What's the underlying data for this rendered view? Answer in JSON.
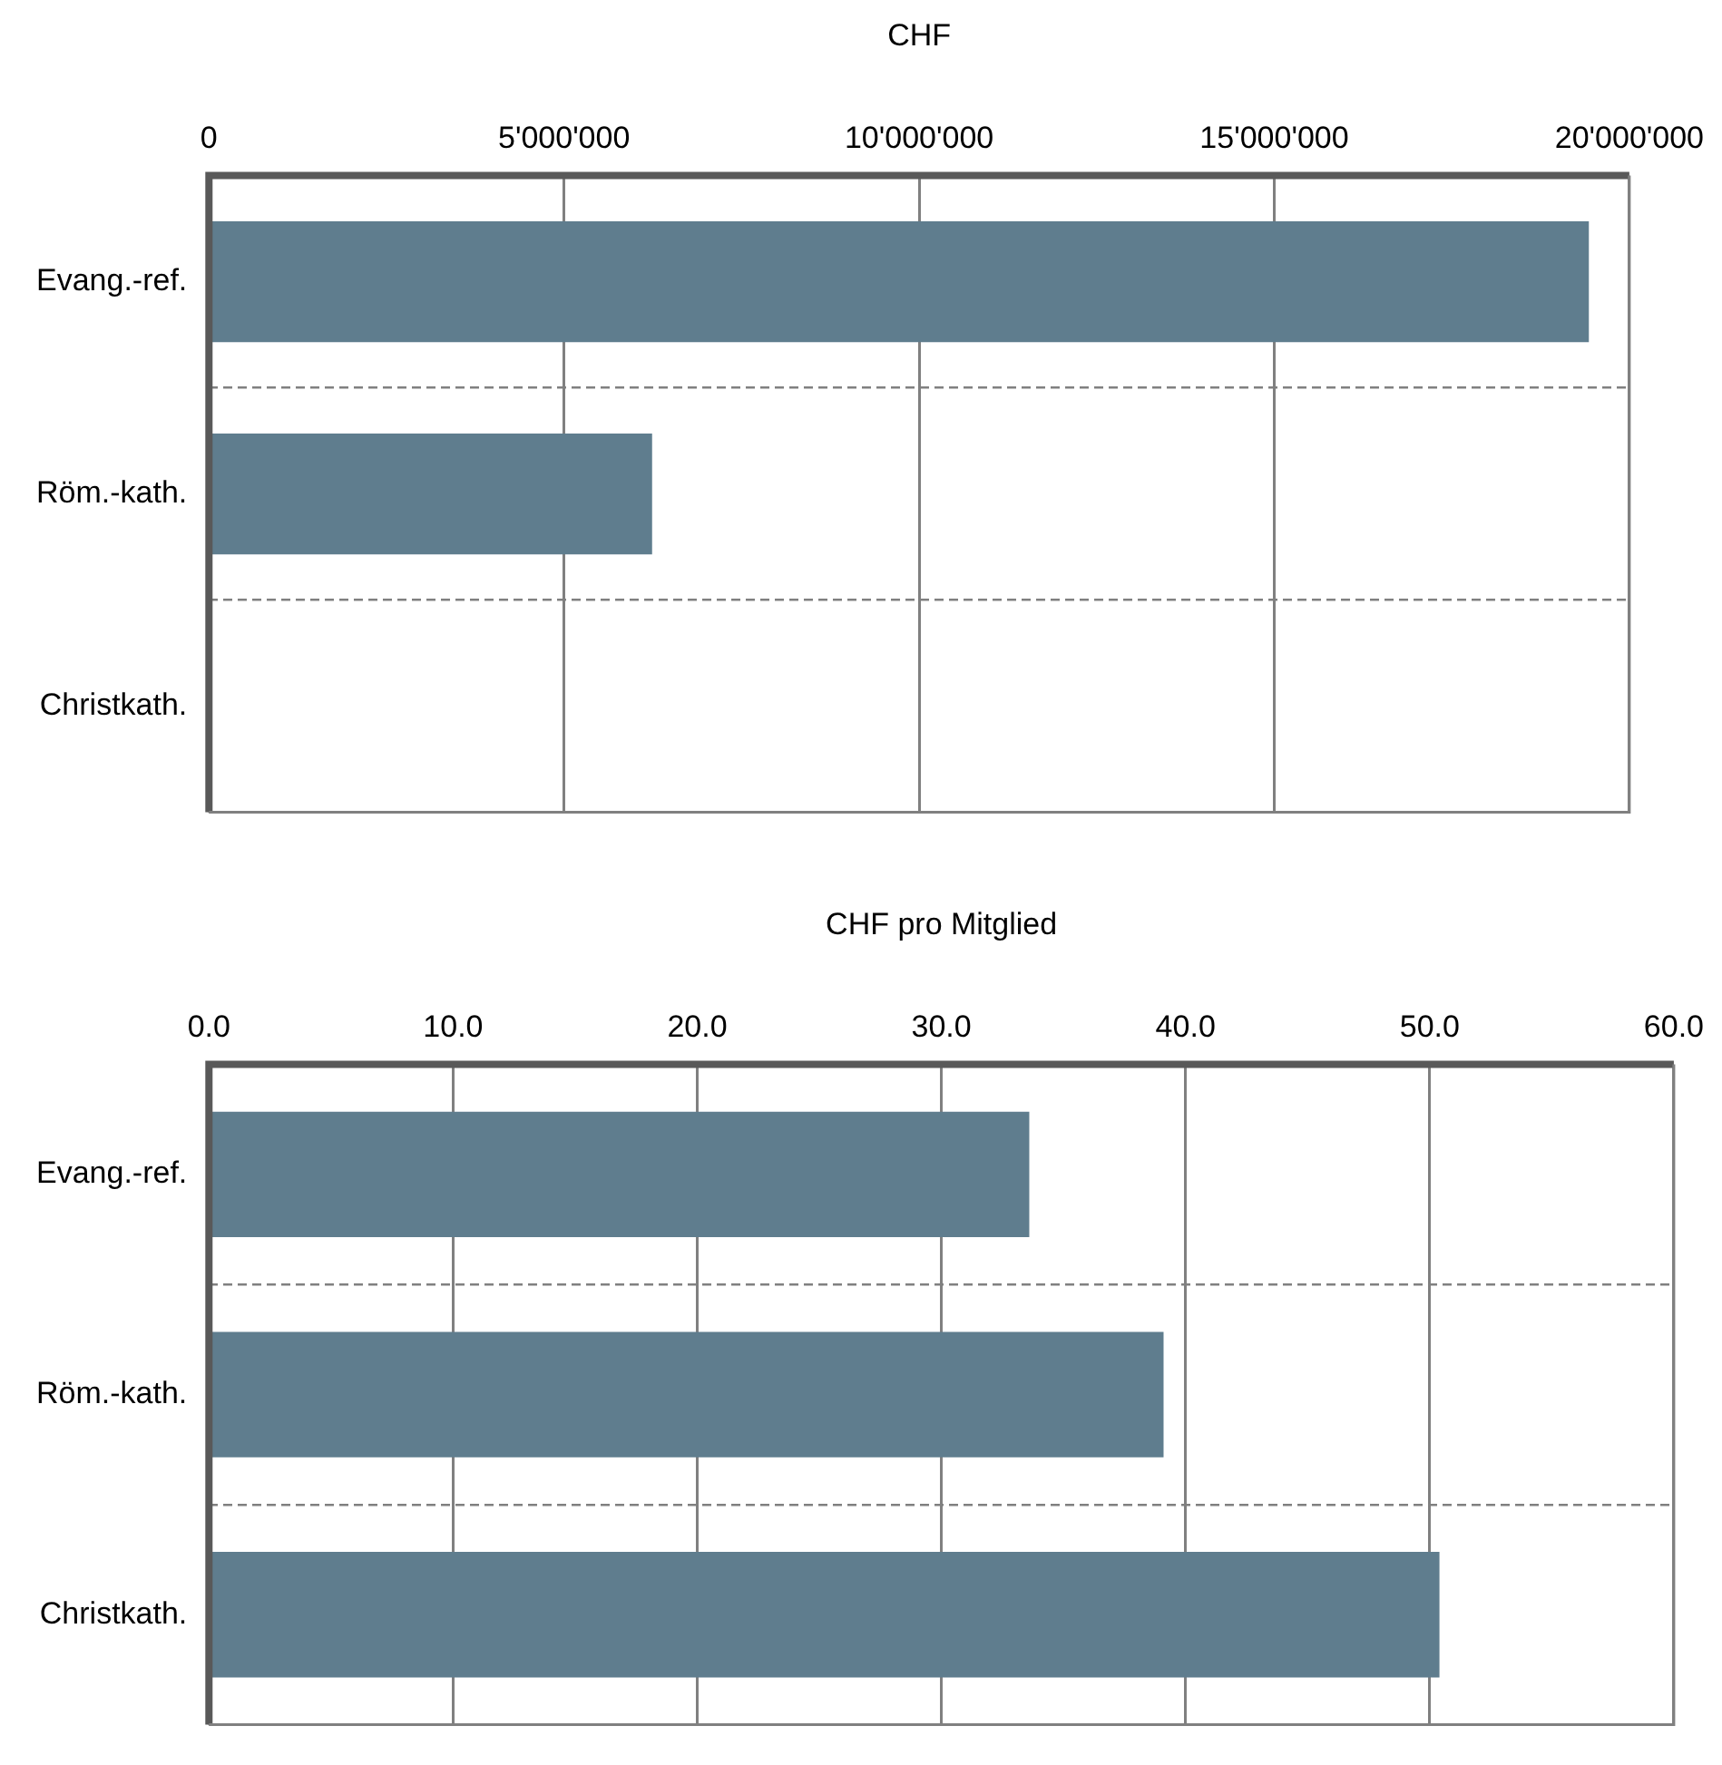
{
  "chart_data": [
    {
      "type": "bar",
      "orientation": "horizontal",
      "xlabel": "CHF",
      "categories": [
        "Evang.-ref.",
        "Röm.-kath.",
        "Christkath."
      ],
      "values": [
        19430000,
        6240000,
        0
      ],
      "color": "#5f7d8e",
      "xlim": [
        0,
        20000000
      ],
      "xticks": [
        0,
        {
          "value": 5000000,
          "label": "5'000'000"
        },
        {
          "value": 10000000,
          "label": "10'000'000"
        },
        {
          "value": 15000000,
          "label": "15'000'000"
        },
        {
          "value": 20000000,
          "label": "20'000'000"
        }
      ],
      "grid": true,
      "legend": false
    },
    {
      "type": "bar",
      "orientation": "horizontal",
      "xlabel": "CHF pro Mitglied",
      "categories": [
        "Evang.-ref.",
        "Röm.-kath.",
        "Christkath."
      ],
      "values": [
        33.6,
        39.1,
        50.4
      ],
      "color": "#5f7d8e",
      "xlim": [
        0,
        60
      ],
      "xticks": [
        {
          "value": 0,
          "label": "0.0"
        },
        {
          "value": 10,
          "label": "10.0"
        },
        {
          "value": 20,
          "label": "20.0"
        },
        {
          "value": 30,
          "label": "30.0"
        },
        {
          "value": 40,
          "label": "40.0"
        },
        {
          "value": 50,
          "label": "50.0"
        },
        {
          "value": 60,
          "label": "60.0"
        }
      ],
      "grid": true,
      "legend": false
    }
  ]
}
